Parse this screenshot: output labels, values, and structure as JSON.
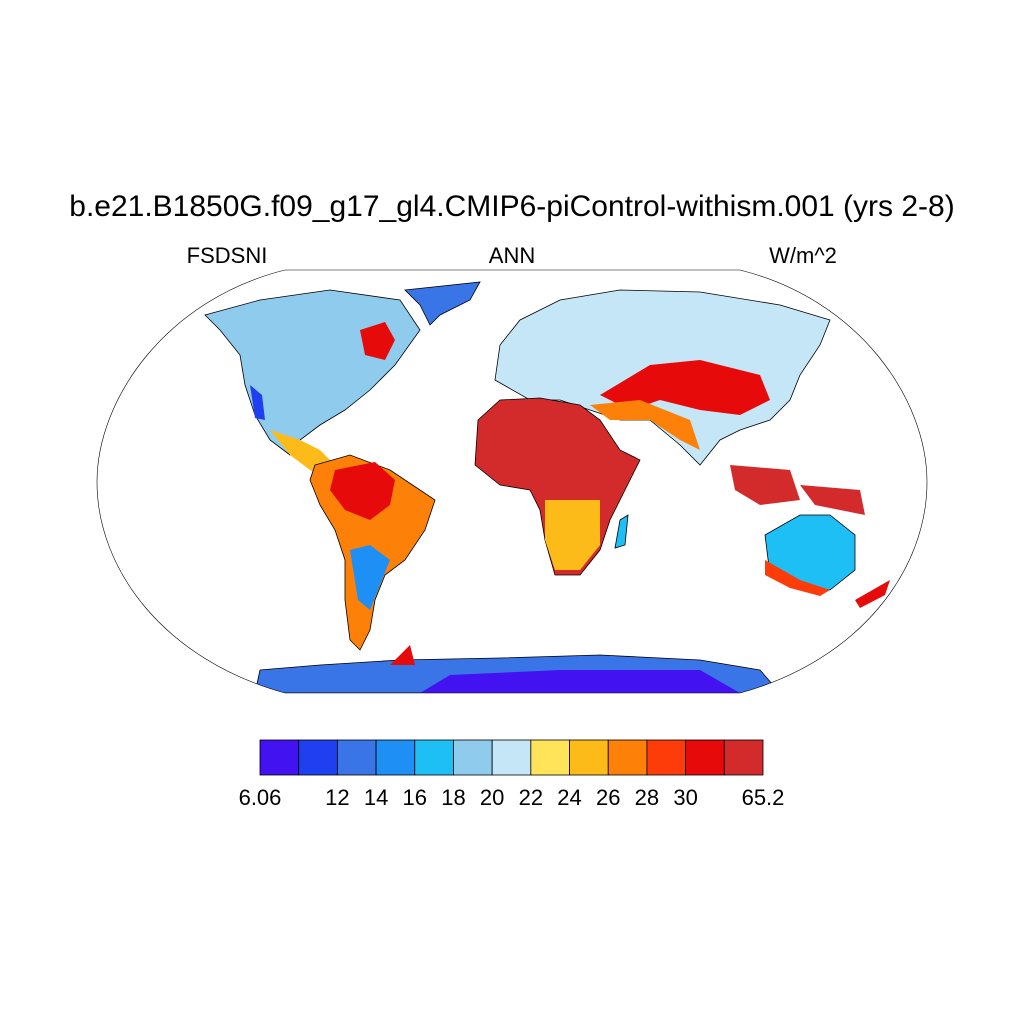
{
  "title": "b.e21.B1850G.f09_g17_gl4.CMIP6-piControl-withism.001 (yrs 2-8)",
  "subtitle_left": "FSDSNI",
  "subtitle_center": "ANN",
  "subtitle_right": "W/m^2",
  "colorbar": {
    "colors": [
      "#4212f0",
      "#1f3ff0",
      "#3a75e8",
      "#1e90f5",
      "#1ebff5",
      "#8fcbed",
      "#c5e6f7",
      "#ffe45a",
      "#fdbb1a",
      "#fd8008",
      "#fd3c0a",
      "#e60a0a",
      "#d32b2b"
    ],
    "ticks": [
      6.06,
      null,
      12,
      14,
      16,
      18,
      20,
      22,
      24,
      26,
      28,
      30,
      null,
      65.2
    ]
  }
}
